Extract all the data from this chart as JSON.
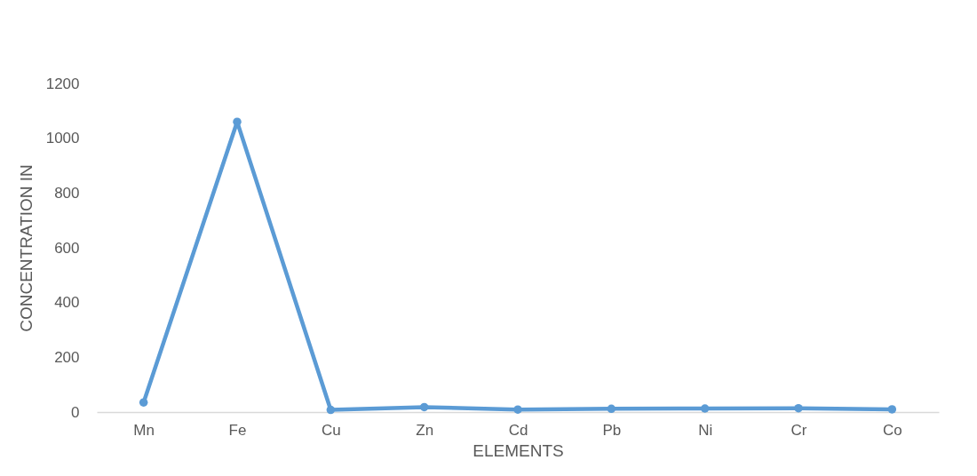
{
  "chart_data": {
    "type": "line",
    "xlabel": "ELEMENTS",
    "ylabel": "CONCENTRATION IN",
    "categories": [
      "Mn",
      "Fe",
      "Cu",
      "Zn",
      "Cd",
      "Pb",
      "Ni",
      "Cr",
      "Co"
    ],
    "series": [
      {
        "color": "#5b9bd5",
        "values": [
          35,
          1060,
          8,
          18,
          9,
          12,
          13,
          14,
          10
        ]
      }
    ],
    "ylim": [
      0,
      1200
    ],
    "yticks": [
      0,
      200,
      400,
      600,
      800,
      1000,
      1200
    ],
    "grid": false,
    "marker": "circle",
    "line_style": "solid"
  }
}
